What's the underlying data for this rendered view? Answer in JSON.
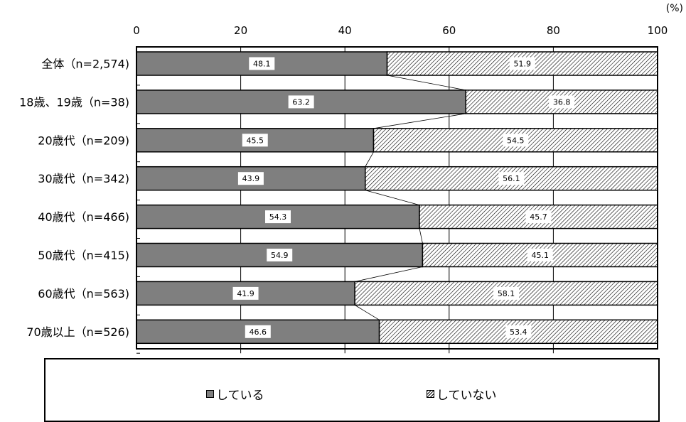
{
  "chart_data": {
    "type": "bar",
    "orientation": "horizontal",
    "stacked": true,
    "unit_label": "(%)",
    "xlim": [
      0,
      100
    ],
    "x_ticks": [
      "0",
      "20",
      "40",
      "60",
      "80",
      "100"
    ],
    "categories": [
      "全体（n=2,574)",
      "18歳、19歳（n=38)",
      "20歳代（n=209)",
      "30歳代（n=342)",
      "40歳代（n=466)",
      "50歳代（n=415)",
      "60歳代（n=563)",
      "70歳以上（n=526)"
    ],
    "series": [
      {
        "name": "している",
        "values": [
          48.1,
          63.2,
          45.5,
          43.9,
          54.3,
          54.9,
          41.9,
          46.6
        ],
        "labels": [
          "48.1",
          "63.2",
          "45.5",
          "43.9",
          "54.3",
          "54.9",
          "41.9",
          "46.6"
        ]
      },
      {
        "name": "していない",
        "values": [
          51.9,
          36.8,
          54.5,
          56.1,
          45.7,
          45.1,
          58.1,
          53.4
        ],
        "labels": [
          "51.9",
          "36.8",
          "54.5",
          "56.1",
          "45.7",
          "45.1",
          "58.1",
          "53.4"
        ]
      }
    ],
    "colors": {
      "series1": "#7f7f7f",
      "series2_hatch": "#000000"
    },
    "legend_position": "bottom",
    "connector_lines": true
  },
  "legend": [
    {
      "label": "している"
    },
    {
      "label": "していない"
    }
  ]
}
